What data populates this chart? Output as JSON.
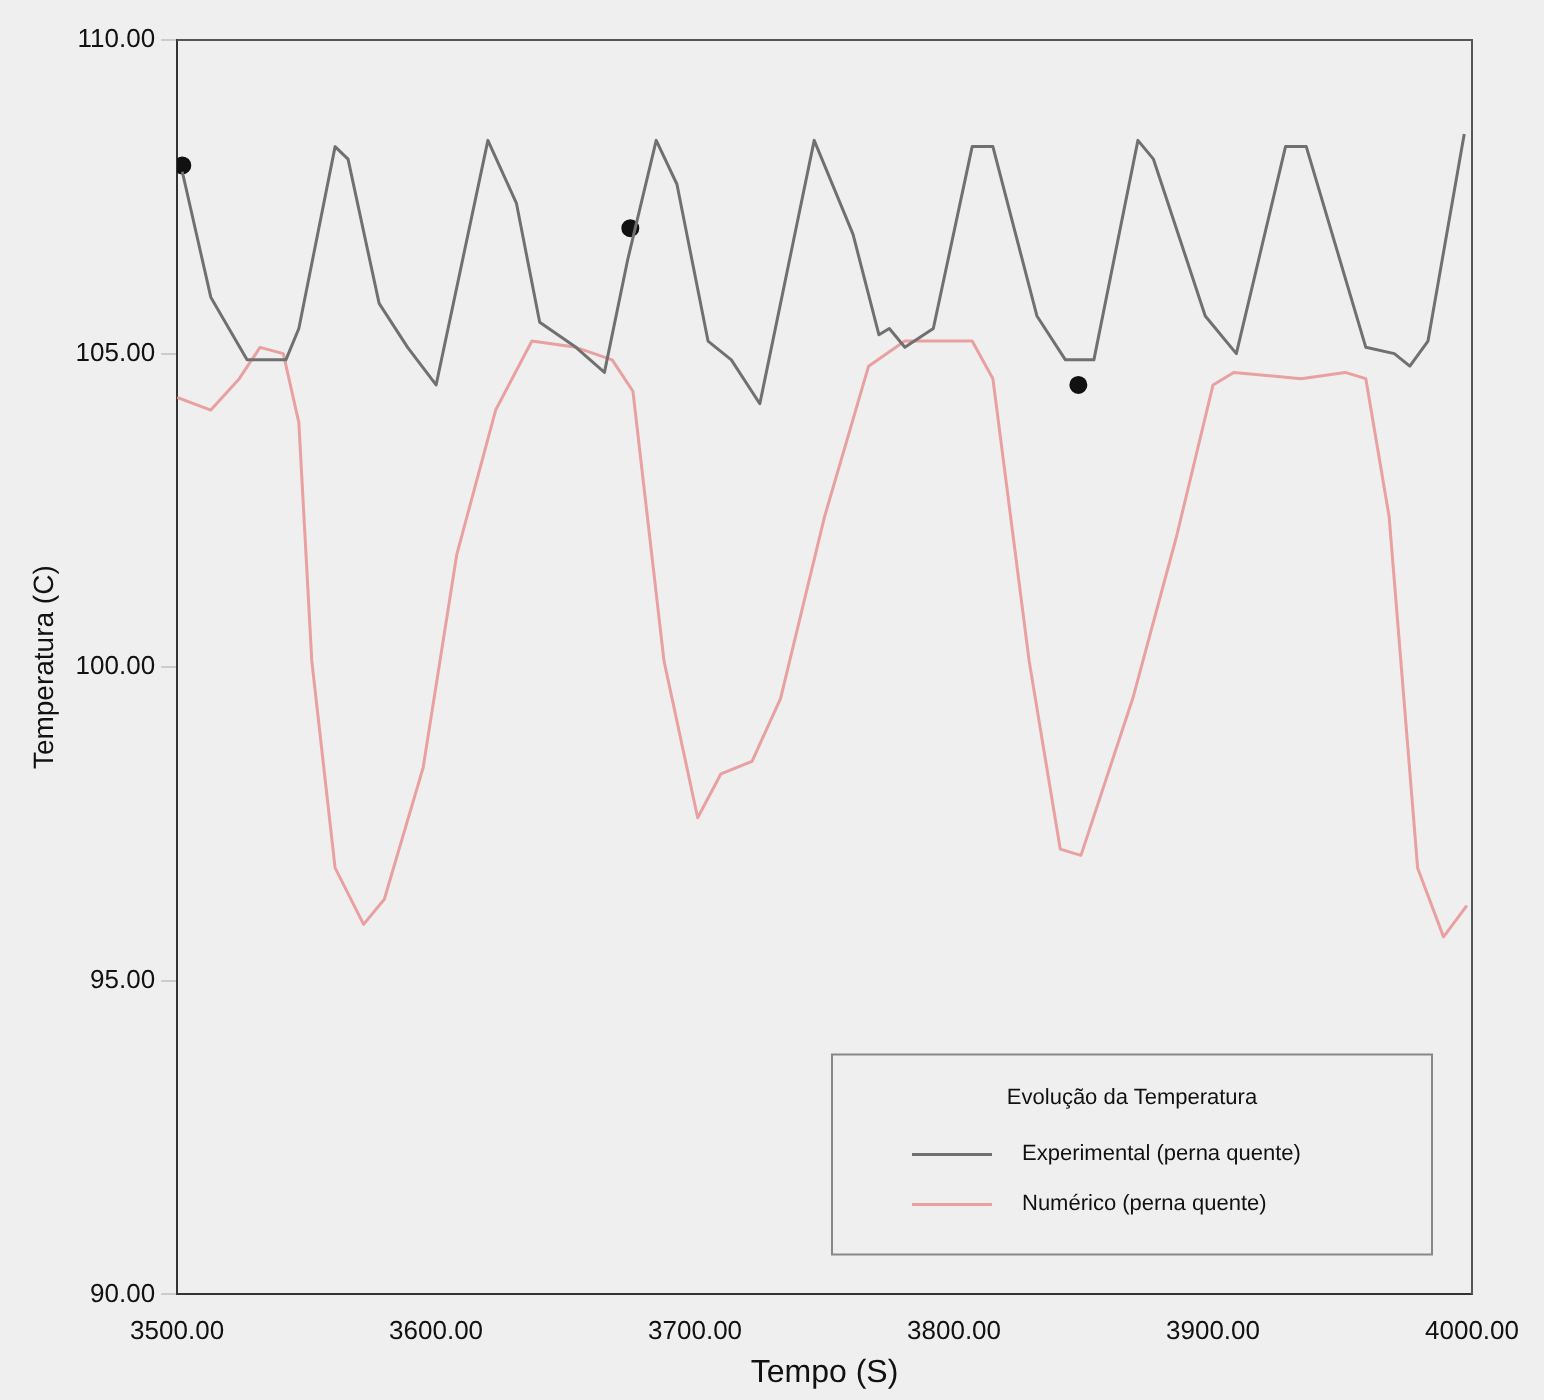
{
  "chart_data": {
    "type": "line",
    "xlabel": "Tempo (S)",
    "ylabel": "Temperatura (C)",
    "legend_title": "Evolução da Temperatura",
    "legend": "bottom right",
    "grid": false,
    "xlim": [
      3500,
      4000
    ],
    "xticks": [
      {
        "value": 3500,
        "label": "3500.00"
      },
      {
        "value": 3600,
        "label": "3600.00"
      },
      {
        "value": 3700,
        "label": "3700.00"
      },
      {
        "value": 3800,
        "label": "3800.00"
      },
      {
        "value": 3900,
        "label": "3900.00"
      },
      {
        "value": 4000,
        "label": "4000.00"
      }
    ],
    "ylim": [
      90,
      110
    ],
    "yticks": [
      {
        "value": 90,
        "label": "90.00"
      },
      {
        "value": 95,
        "label": "95.00"
      },
      {
        "value": 100,
        "label": "100.00"
      },
      {
        "value": 105,
        "label": "105.00"
      },
      {
        "value": 110,
        "label": "110.00"
      }
    ],
    "series": [
      {
        "name": "Experimental (perna quente)",
        "color": "#707070",
        "marker": "none",
        "x": [
          3502,
          3513,
          3527,
          3542,
          3547,
          3561,
          3566,
          3578,
          3589,
          3600,
          3620,
          3631,
          3640,
          3654,
          3665,
          3674,
          3685,
          3693,
          3705,
          3714,
          3725,
          3746,
          3761,
          3771,
          3775,
          3781,
          3792,
          3807,
          3815,
          3832,
          3843,
          3854,
          3871,
          3877,
          3897,
          3909,
          3928,
          3936,
          3959,
          3970,
          3976,
          3983,
          3997
        ],
        "values": [
          107.9,
          105.9,
          104.9,
          104.9,
          105.4,
          108.3,
          108.1,
          105.8,
          105.1,
          104.5,
          108.4,
          107.4,
          105.5,
          105.1,
          104.7,
          106.5,
          108.4,
          107.7,
          105.2,
          104.9,
          104.2,
          108.4,
          106.9,
          105.3,
          105.4,
          105.1,
          105.4,
          108.3,
          108.3,
          105.6,
          104.9,
          104.9,
          108.4,
          108.1,
          105.6,
          105.0,
          108.3,
          108.3,
          105.1,
          105.0,
          104.8,
          105.2,
          108.5
        ]
      },
      {
        "name": "Numérico (perna quente)",
        "color": "#e8a0a0",
        "marker": "none",
        "x": [
          3500,
          3513,
          3524,
          3532,
          3541,
          3547,
          3552,
          3561,
          3572,
          3580,
          3595,
          3608,
          3623,
          3637,
          3654,
          3668,
          3676,
          3688,
          3701,
          3710,
          3722,
          3733,
          3750,
          3767,
          3781,
          3807,
          3815,
          3829,
          3841,
          3849,
          3869,
          3886,
          3900,
          3908,
          3934,
          3951,
          3959,
          3968,
          3979,
          3989,
          3998
        ],
        "values": [
          104.3,
          104.1,
          104.6,
          105.1,
          105.0,
          103.9,
          100.1,
          96.8,
          95.9,
          96.3,
          98.4,
          101.8,
          104.1,
          105.2,
          105.1,
          104.9,
          104.4,
          100.1,
          97.6,
          98.3,
          98.5,
          99.5,
          102.4,
          104.8,
          105.2,
          105.2,
          104.6,
          100.1,
          97.1,
          97.0,
          99.5,
          102.1,
          104.5,
          104.7,
          104.6,
          104.7,
          104.6,
          102.4,
          96.8,
          95.7,
          96.2
        ]
      },
      {
        "type": "scatter",
        "color": "#111111",
        "marker": "circle",
        "x": [
          3502,
          3675,
          3848
        ],
        "values": [
          108.0,
          107.0,
          104.5
        ]
      }
    ]
  }
}
